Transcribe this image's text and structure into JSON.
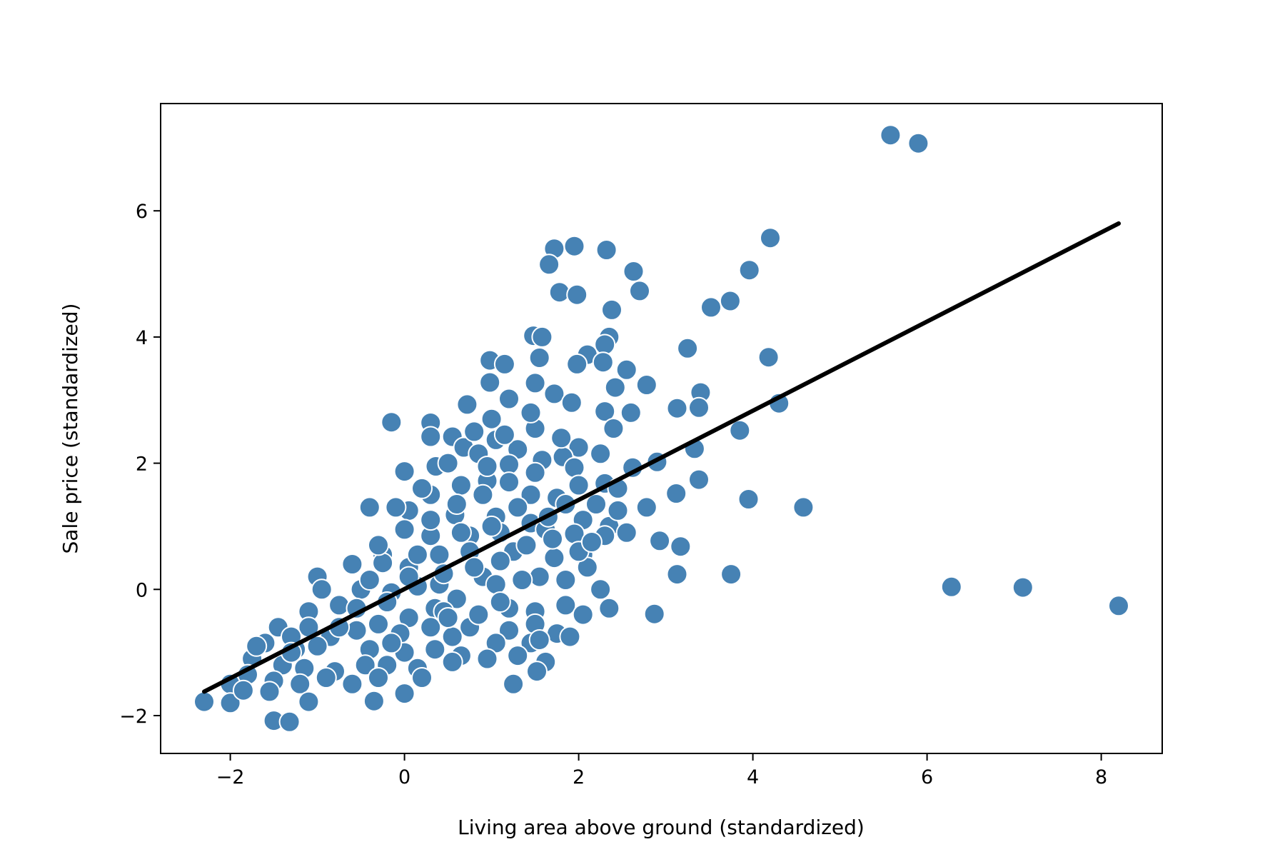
{
  "chart_data": {
    "type": "scatter",
    "title": "",
    "xlabel": "Living area above ground (standardized)",
    "ylabel": "Sale price (standardized)",
    "xlim": [
      -2.8,
      8.7
    ],
    "ylim": [
      -2.6,
      7.7
    ],
    "x_ticks": [
      -2,
      0,
      2,
      4,
      6,
      8
    ],
    "x_tick_labels": [
      "−2",
      "0",
      "2",
      "4",
      "6",
      "8"
    ],
    "y_ticks": [
      -2,
      0,
      2,
      4,
      6
    ],
    "y_tick_labels": [
      "−2",
      "0",
      "2",
      "4",
      "6"
    ],
    "grid": false,
    "legend": "none",
    "marker_color": "#4682b4",
    "marker_edge_color": "#ffffff",
    "line_color": "#000000",
    "regression_line": {
      "x": [
        -2.3,
        8.2
      ],
      "y": [
        -1.62,
        5.8
      ]
    },
    "series": [
      {
        "points": [
          [
            5.58,
            7.2
          ],
          [
            5.9,
            7.07
          ],
          [
            4.2,
            5.57
          ],
          [
            3.96,
            5.06
          ],
          [
            3.74,
            4.57
          ],
          [
            3.52,
            4.47
          ],
          [
            3.25,
            3.82
          ],
          [
            4.18,
            3.68
          ],
          [
            3.4,
            3.12
          ],
          [
            3.38,
            2.88
          ],
          [
            4.3,
            2.95
          ],
          [
            3.13,
            2.87
          ],
          [
            3.85,
            2.52
          ],
          [
            3.33,
            2.23
          ],
          [
            2.9,
            2.02
          ],
          [
            3.38,
            1.74
          ],
          [
            3.95,
            1.43
          ],
          [
            4.58,
            1.3
          ],
          [
            3.12,
            1.52
          ],
          [
            3.17,
            0.68
          ],
          [
            2.93,
            0.77
          ],
          [
            3.13,
            0.24
          ],
          [
            3.75,
            0.24
          ],
          [
            2.87,
            -0.39
          ],
          [
            6.28,
            0.04
          ],
          [
            7.1,
            0.03
          ],
          [
            8.2,
            -0.26
          ],
          [
            1.95,
            5.44
          ],
          [
            1.72,
            5.4
          ],
          [
            2.32,
            5.38
          ],
          [
            1.66,
            5.15
          ],
          [
            2.63,
            5.04
          ],
          [
            2.7,
            4.73
          ],
          [
            1.78,
            4.71
          ],
          [
            1.98,
            4.67
          ],
          [
            2.38,
            4.43
          ],
          [
            1.48,
            4.02
          ],
          [
            1.58,
            4.0
          ],
          [
            2.35,
            4.0
          ],
          [
            2.3,
            3.88
          ],
          [
            1.55,
            3.67
          ],
          [
            2.1,
            3.72
          ],
          [
            0.98,
            3.63
          ],
          [
            1.15,
            3.57
          ],
          [
            2.28,
            3.6
          ],
          [
            1.98,
            3.57
          ],
          [
            2.55,
            3.48
          ],
          [
            1.5,
            3.27
          ],
          [
            0.98,
            3.28
          ],
          [
            2.42,
            3.2
          ],
          [
            2.78,
            3.24
          ],
          [
            1.72,
            3.1
          ],
          [
            1.2,
            3.02
          ],
          [
            0.72,
            2.93
          ],
          [
            1.92,
            2.96
          ],
          [
            2.3,
            2.82
          ],
          [
            2.6,
            2.8
          ],
          [
            0.3,
            2.64
          ],
          [
            -0.15,
            2.65
          ],
          [
            1.0,
            2.7
          ],
          [
            1.5,
            2.55
          ],
          [
            2.4,
            2.55
          ],
          [
            0.3,
            2.42
          ],
          [
            0.55,
            2.42
          ],
          [
            1.05,
            2.37
          ],
          [
            0.68,
            2.25
          ],
          [
            1.3,
            2.22
          ],
          [
            2.0,
            2.25
          ],
          [
            2.25,
            2.15
          ],
          [
            1.58,
            2.05
          ],
          [
            1.82,
            2.1
          ],
          [
            0.36,
            1.95
          ],
          [
            1.2,
            1.98
          ],
          [
            1.95,
            1.93
          ],
          [
            2.62,
            1.93
          ],
          [
            0.0,
            1.87
          ],
          [
            0.65,
            1.65
          ],
          [
            0.95,
            1.72
          ],
          [
            2.0,
            1.65
          ],
          [
            2.3,
            1.68
          ],
          [
            2.45,
            1.6
          ],
          [
            0.3,
            1.5
          ],
          [
            1.45,
            1.5
          ],
          [
            1.75,
            1.45
          ],
          [
            2.78,
            1.3
          ],
          [
            -0.4,
            1.3
          ],
          [
            0.05,
            1.25
          ],
          [
            0.58,
            1.18
          ],
          [
            1.05,
            1.15
          ],
          [
            1.45,
            1.05
          ],
          [
            2.05,
            1.1
          ],
          [
            2.35,
            1.0
          ],
          [
            2.55,
            0.9
          ],
          [
            0.3,
            0.85
          ],
          [
            0.75,
            0.85
          ],
          [
            1.1,
            0.9
          ],
          [
            1.62,
            0.95
          ],
          [
            1.95,
            0.88
          ],
          [
            2.3,
            0.85
          ],
          [
            -0.25,
            0.55
          ],
          [
            0.4,
            0.55
          ],
          [
            0.75,
            0.6
          ],
          [
            1.25,
            0.6
          ],
          [
            1.72,
            0.5
          ],
          [
            2.05,
            0.55
          ],
          [
            -0.25,
            0.42
          ],
          [
            0.05,
            0.35
          ],
          [
            0.4,
            0.08
          ],
          [
            0.9,
            0.2
          ],
          [
            1.05,
            0.08
          ],
          [
            1.55,
            0.2
          ],
          [
            2.1,
            0.35
          ],
          [
            2.25,
            0.0
          ],
          [
            -1.0,
            0.2
          ],
          [
            -0.95,
            0.0
          ],
          [
            -0.5,
            0.0
          ],
          [
            -0.15,
            -0.05
          ],
          [
            0.35,
            -0.3
          ],
          [
            0.6,
            -0.15
          ],
          [
            1.2,
            -0.3
          ],
          [
            1.5,
            -0.35
          ],
          [
            1.85,
            -0.25
          ],
          [
            2.05,
            -0.4
          ],
          [
            2.35,
            -0.3
          ],
          [
            -1.1,
            -0.35
          ],
          [
            -0.75,
            -0.25
          ],
          [
            -0.3,
            -0.55
          ],
          [
            0.05,
            -0.45
          ],
          [
            0.45,
            -0.35
          ],
          [
            0.75,
            -0.6
          ],
          [
            1.2,
            -0.65
          ],
          [
            1.5,
            -0.55
          ],
          [
            1.75,
            -0.7
          ],
          [
            -1.45,
            -0.6
          ],
          [
            -1.1,
            -0.6
          ],
          [
            -0.55,
            -0.65
          ],
          [
            -0.05,
            -0.7
          ],
          [
            0.3,
            -0.6
          ],
          [
            0.55,
            -0.75
          ],
          [
            1.05,
            -0.85
          ],
          [
            1.45,
            -0.85
          ],
          [
            1.55,
            -0.8
          ],
          [
            1.9,
            -0.75
          ],
          [
            -1.6,
            -0.85
          ],
          [
            -1.25,
            -0.95
          ],
          [
            -0.4,
            -0.95
          ],
          [
            0.0,
            -1.0
          ],
          [
            0.35,
            -0.95
          ],
          [
            0.65,
            -1.05
          ],
          [
            0.95,
            -1.1
          ],
          [
            1.3,
            -1.05
          ],
          [
            1.62,
            -1.15
          ],
          [
            -1.75,
            -1.1
          ],
          [
            -1.4,
            -1.2
          ],
          [
            -1.15,
            -1.25
          ],
          [
            -0.8,
            -1.3
          ],
          [
            -0.45,
            -1.2
          ],
          [
            -0.2,
            -1.2
          ],
          [
            0.15,
            -1.25
          ],
          [
            0.55,
            -1.15
          ],
          [
            1.52,
            -1.3
          ],
          [
            -2.0,
            -1.5
          ],
          [
            -1.8,
            -1.35
          ],
          [
            -1.5,
            -1.45
          ],
          [
            -1.2,
            -1.5
          ],
          [
            -0.9,
            -1.4
          ],
          [
            -0.6,
            -1.5
          ],
          [
            -0.3,
            -1.4
          ],
          [
            0.2,
            -1.4
          ],
          [
            1.25,
            -1.5
          ],
          [
            -2.3,
            -1.78
          ],
          [
            -2.0,
            -1.8
          ],
          [
            -1.55,
            -1.62
          ],
          [
            -1.1,
            -1.78
          ],
          [
            -0.35,
            -1.77
          ],
          [
            0.0,
            -1.65
          ],
          [
            -1.5,
            -2.08
          ],
          [
            -1.32,
            -2.1
          ],
          [
            -1.7,
            -0.9
          ],
          [
            -1.3,
            -0.75
          ],
          [
            -0.85,
            -0.75
          ],
          [
            -0.55,
            -0.3
          ],
          [
            -0.2,
            -0.2
          ],
          [
            0.15,
            0.05
          ],
          [
            0.45,
            0.25
          ],
          [
            0.8,
            0.35
          ],
          [
            1.1,
            0.45
          ],
          [
            1.4,
            0.7
          ],
          [
            1.7,
            0.8
          ],
          [
            2.0,
            0.6
          ],
          [
            -0.6,
            0.4
          ],
          [
            -0.3,
            0.7
          ],
          [
            0.0,
            0.95
          ],
          [
            0.3,
            1.1
          ],
          [
            0.6,
            1.35
          ],
          [
            0.9,
            1.5
          ],
          [
            1.2,
            1.7
          ],
          [
            1.5,
            1.85
          ],
          [
            -0.1,
            1.3
          ],
          [
            0.2,
            1.6
          ],
          [
            0.5,
            2.0
          ],
          [
            0.85,
            2.15
          ],
          [
            1.15,
            2.45
          ],
          [
            1.45,
            2.8
          ],
          [
            0.8,
            2.5
          ],
          [
            1.3,
            1.3
          ],
          [
            1.85,
            1.35
          ],
          [
            2.2,
            1.35
          ],
          [
            0.05,
            0.2
          ],
          [
            -0.75,
            -0.6
          ],
          [
            -1.3,
            -1.0
          ],
          [
            -0.15,
            -0.85
          ],
          [
            0.85,
            -0.4
          ],
          [
            1.35,
            0.15
          ],
          [
            1.85,
            0.15
          ],
          [
            2.45,
            1.25
          ],
          [
            2.15,
            0.75
          ],
          [
            0.5,
            -0.45
          ],
          [
            -0.4,
            0.15
          ],
          [
            1.0,
            1.0
          ],
          [
            0.15,
            0.55
          ],
          [
            1.65,
            1.15
          ],
          [
            -1.85,
            -1.6
          ],
          [
            -1.0,
            -0.9
          ],
          [
            0.65,
            0.9
          ],
          [
            1.1,
            -0.2
          ],
          [
            0.95,
            1.95
          ],
          [
            1.8,
            2.4
          ]
        ]
      }
    ]
  }
}
